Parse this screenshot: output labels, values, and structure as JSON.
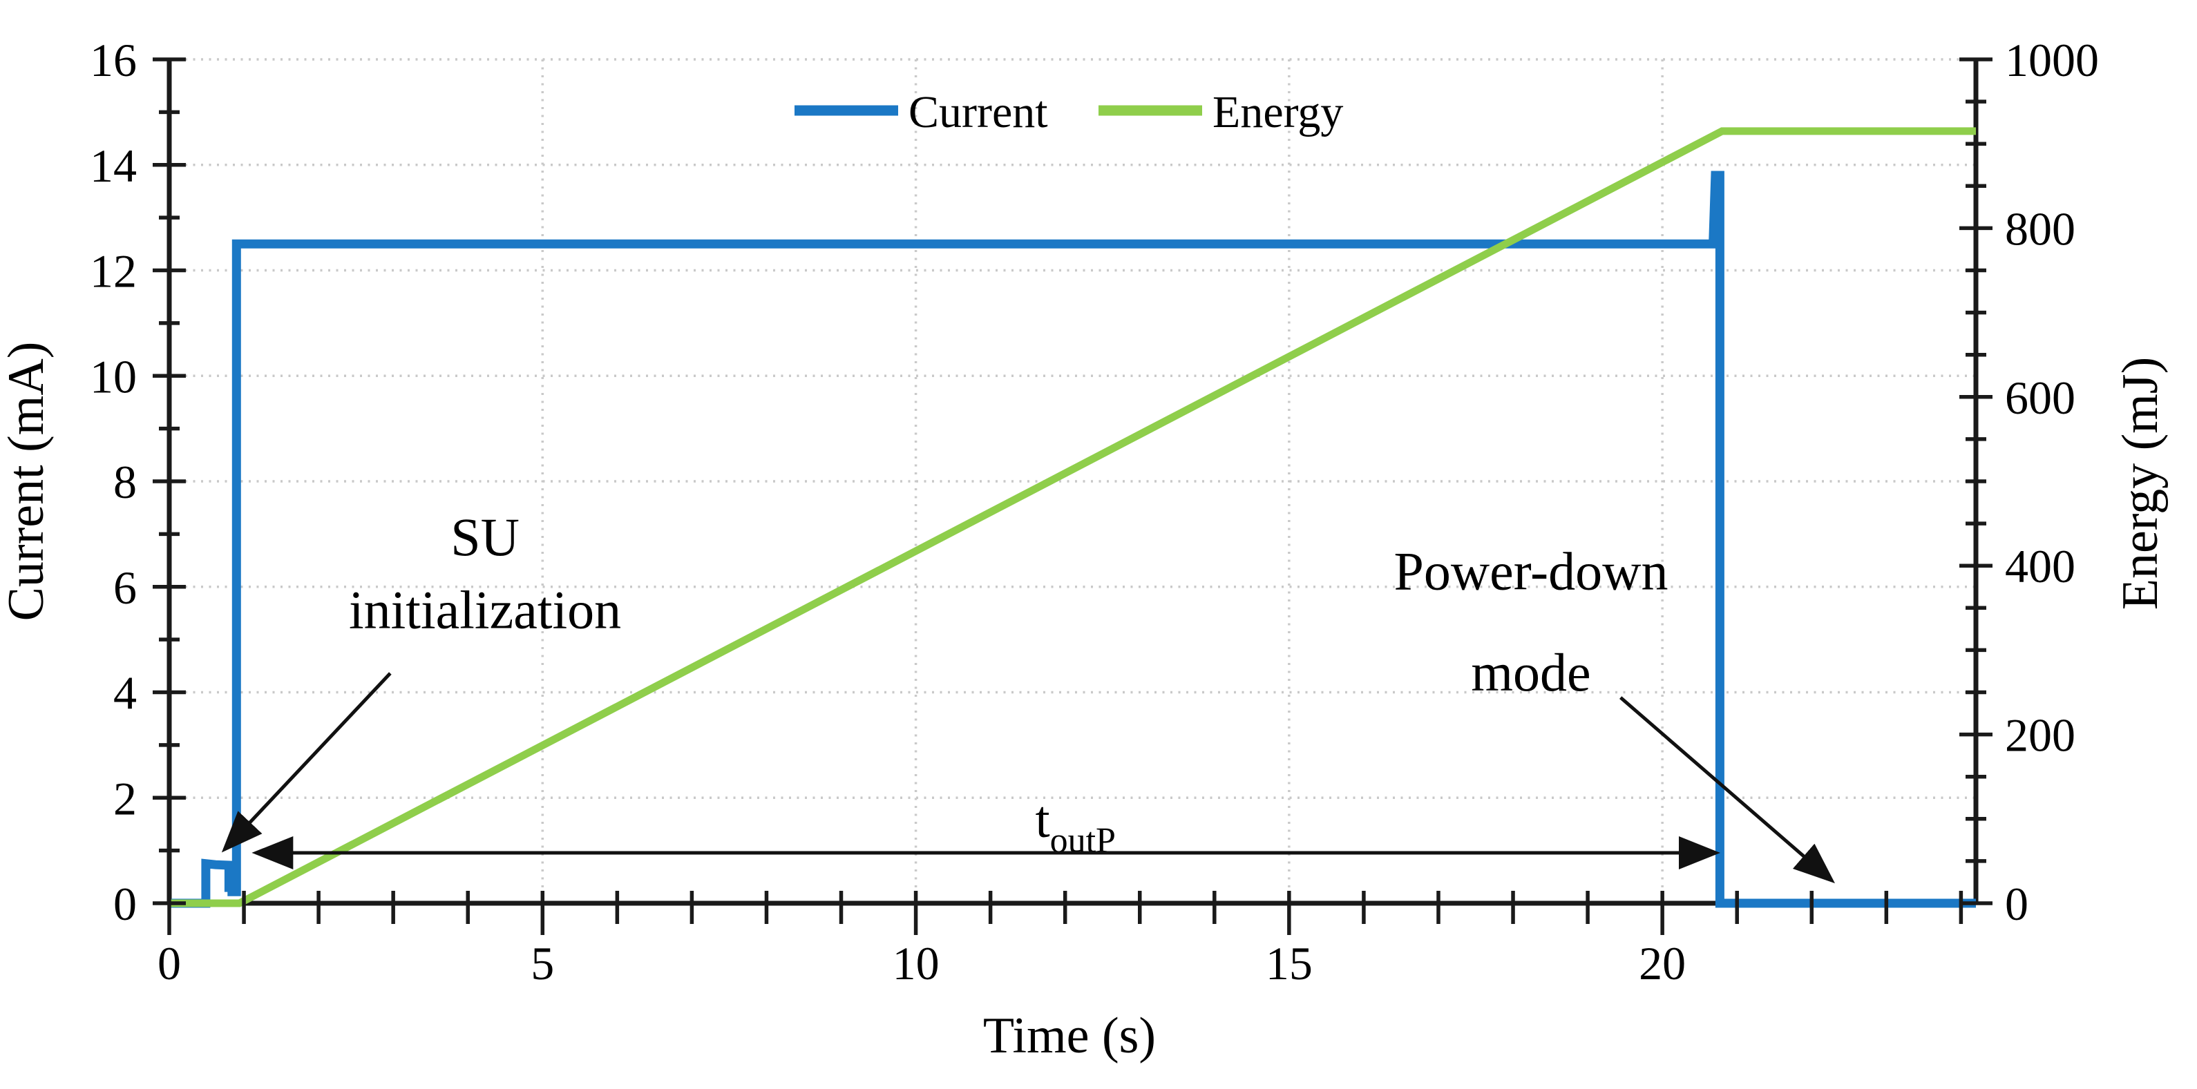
{
  "chart_data": {
    "type": "line",
    "title": "",
    "xlabel": "Time (s)",
    "ylabel_left": "Current (mA)",
    "ylabel_right": "Energy (mJ)",
    "x_range": [
      0,
      24.2
    ],
    "y_left_range": [
      0,
      16
    ],
    "y_right_range": [
      0,
      1000
    ],
    "x_ticks": {
      "minor_step": 1,
      "major_step": 5,
      "labels": [
        "0",
        "5",
        "10",
        "15",
        "20"
      ],
      "label_values": [
        0,
        5,
        10,
        15,
        20
      ]
    },
    "y_left_ticks": {
      "minor_step": 1,
      "major_step": 2,
      "labels": [
        "0",
        "2",
        "4",
        "6",
        "8",
        "10",
        "12",
        "14",
        "16"
      ],
      "label_values": [
        0,
        2,
        4,
        6,
        8,
        10,
        12,
        14,
        16
      ]
    },
    "y_right_ticks": {
      "minor_step": 50,
      "major_step": 200,
      "labels": [
        "0",
        "200",
        "400",
        "600",
        "800",
        "1000"
      ],
      "label_values": [
        0,
        200,
        400,
        600,
        800,
        1000
      ]
    },
    "grid": {
      "style": "dotted",
      "color": "#c9c9c9",
      "horizontal_every": 2,
      "vertical_every": 5
    },
    "axis_color": "#1a1a1a",
    "legend": {
      "position": "top-center",
      "items": [
        {
          "label": "Current",
          "color": "#1b78c5"
        },
        {
          "label": "Energy",
          "color": "#8fce4b"
        }
      ]
    },
    "series": [
      {
        "name": "Current",
        "axis": "left",
        "color": "#1b78c5",
        "points": [
          [
            0,
            0
          ],
          [
            0.49,
            0
          ],
          [
            0.49,
            0.75
          ],
          [
            0.62,
            0.73
          ],
          [
            0.8,
            0.72
          ],
          [
            0.8,
            0.3
          ],
          [
            0.84,
            0.3
          ],
          [
            0.84,
            0.22
          ],
          [
            0.9,
            0.22
          ],
          [
            0.9,
            12.5
          ],
          [
            20.68,
            12.5
          ],
          [
            20.71,
            13.8
          ],
          [
            20.77,
            13.8
          ],
          [
            20.77,
            0
          ],
          [
            24.2,
            0
          ]
        ]
      },
      {
        "name": "Energy",
        "axis": "right",
        "color": "#8fce4b",
        "points": [
          [
            0,
            0
          ],
          [
            0.94,
            0
          ],
          [
            20.8,
            915
          ],
          [
            24.2,
            915
          ]
        ]
      }
    ],
    "annotations": [
      {
        "id": "su-initialization",
        "lines": [
          "SU",
          "initialization"
        ],
        "x": 4.23,
        "line_y": [
          6.6,
          5.22
        ]
      },
      {
        "id": "power-down-mode",
        "lines": [
          "Power-down",
          "mode"
        ],
        "x": 18.24,
        "line_y": [
          5.95,
          4.03
        ]
      },
      {
        "id": "t-outp",
        "main": "t",
        "sub": "outP",
        "x": 11.6,
        "y": 1.26
      }
    ],
    "arrows": [
      {
        "id": "su-arrow",
        "from": [
          2.96,
          4.36
        ],
        "to": [
          0.74,
          1.02
        ],
        "heads": "end"
      },
      {
        "id": "toutp-arrow",
        "from": [
          1.16,
          0.956
        ],
        "to": [
          20.72,
          0.956
        ],
        "heads": "both"
      },
      {
        "id": "powerdown-arrow",
        "from": [
          19.44,
          3.9
        ],
        "to": [
          22.27,
          0.43
        ],
        "heads": "end"
      }
    ]
  }
}
